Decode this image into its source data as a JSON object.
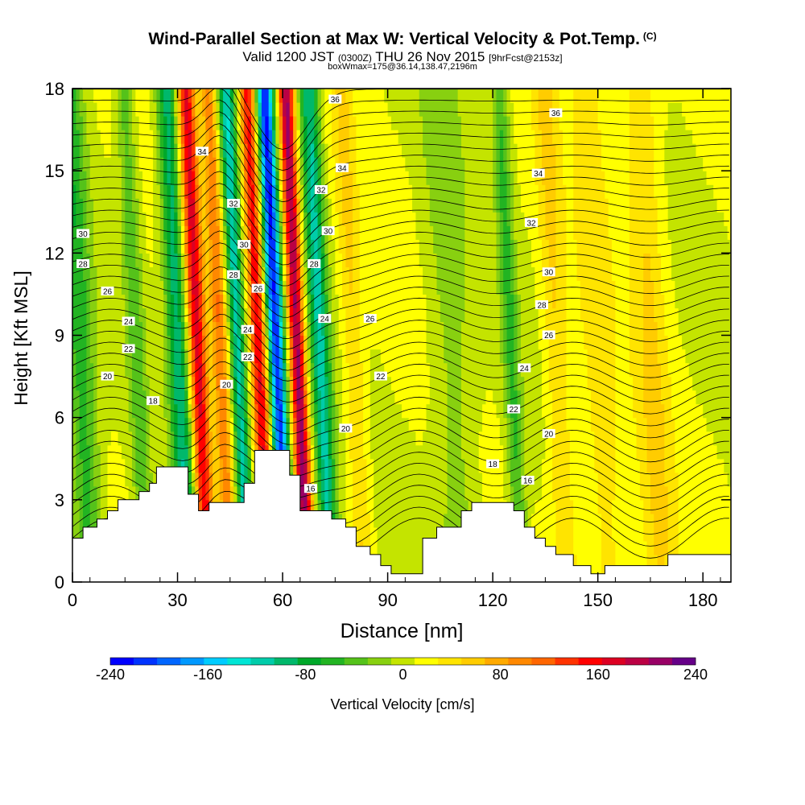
{
  "header": {
    "title": "Wind-Parallel Section at Max W: Vertical Velocity & Pot.Temp.",
    "copyright": "(C)",
    "valid_prefix": "Valid 1200 JST",
    "valid_utc": "(0300Z)",
    "valid_date": "THU 26 Nov 2015",
    "forecast": "[9hrFcst@2153z]",
    "box_info": "boxWmax=175@36.14,138.47,2196m"
  },
  "chart_data": {
    "type": "heatmap",
    "xlabel": "Distance [nm]",
    "ylabel": "Height [Kft MSL]",
    "xlim": [
      0,
      188
    ],
    "ylim": [
      0,
      18
    ],
    "x_ticks": [
      0,
      30,
      60,
      90,
      120,
      150,
      180
    ],
    "y_ticks": [
      0,
      3,
      6,
      9,
      12,
      15,
      18
    ],
    "colorbar": {
      "label": "Vertical Velocity [cm/s]",
      "ticks": [
        -240,
        -160,
        -80,
        0,
        80,
        160,
        240
      ],
      "range": [
        -240,
        240
      ],
      "colors": [
        "#0000ff",
        "#0033ff",
        "#0066ff",
        "#0099ff",
        "#00ccff",
        "#00e5d5",
        "#00ccaa",
        "#00b86b",
        "#00a82a",
        "#22b422",
        "#55c21a",
        "#88d010",
        "#c4e400",
        "#ffff00",
        "#ffe400",
        "#ffcc00",
        "#ffaa00",
        "#ff8800",
        "#ff6600",
        "#ff3300",
        "#ff0000",
        "#dd0022",
        "#bb0044",
        "#990066",
        "#660088"
      ]
    },
    "velocity_features": [
      {
        "x": 2,
        "w": 4,
        "v": -70
      },
      {
        "x": 18,
        "w": 2.5,
        "v": -50
      },
      {
        "x": 30,
        "w": 3,
        "v": -110
      },
      {
        "x": 35.5,
        "w": 2.6,
        "v": 160
      },
      {
        "x": 42,
        "w": 2.4,
        "v": 90
      },
      {
        "x": 47,
        "w": 2.4,
        "v": -130
      },
      {
        "x": 53,
        "w": 2.4,
        "v": 150
      },
      {
        "x": 58,
        "w": 2.4,
        "v": -230
      },
      {
        "x": 64,
        "w": 2.2,
        "v": 200
      },
      {
        "x": 70.5,
        "w": 2.8,
        "v": -120
      },
      {
        "x": 80,
        "w": 3,
        "v": 40
      },
      {
        "x": 108,
        "w": 6,
        "v": -30
      },
      {
        "x": 125,
        "w": 2.4,
        "v": -60
      },
      {
        "x": 138,
        "w": 3.5,
        "v": 40
      },
      {
        "x": 150,
        "w": 5,
        "v": 30
      },
      {
        "x": 165,
        "w": 5,
        "v": 40
      }
    ],
    "theta_contours": {
      "levels": [
        16,
        18,
        20,
        22,
        24,
        26,
        28,
        30,
        32,
        34,
        36
      ],
      "labels": [
        {
          "x": 68,
          "y": 3.4,
          "t": "16"
        },
        {
          "x": 130,
          "y": 3.7,
          "t": "16"
        },
        {
          "x": 23,
          "y": 6.6,
          "t": "18"
        },
        {
          "x": 120,
          "y": 4.3,
          "t": "18"
        },
        {
          "x": 10,
          "y": 7.5,
          "t": "20"
        },
        {
          "x": 44,
          "y": 7.2,
          "t": "20"
        },
        {
          "x": 78,
          "y": 5.6,
          "t": "20"
        },
        {
          "x": 136,
          "y": 5.4,
          "t": "20"
        },
        {
          "x": 16,
          "y": 8.5,
          "t": "22"
        },
        {
          "x": 50,
          "y": 8.2,
          "t": "22"
        },
        {
          "x": 88,
          "y": 7.5,
          "t": "22"
        },
        {
          "x": 126,
          "y": 6.3,
          "t": "22"
        },
        {
          "x": 16,
          "y": 9.5,
          "t": "24"
        },
        {
          "x": 50,
          "y": 9.2,
          "t": "24"
        },
        {
          "x": 72,
          "y": 9.6,
          "t": "24"
        },
        {
          "x": 129,
          "y": 7.8,
          "t": "24"
        },
        {
          "x": 10,
          "y": 10.6,
          "t": "26"
        },
        {
          "x": 53,
          "y": 10.7,
          "t": "26"
        },
        {
          "x": 85,
          "y": 9.6,
          "t": "26"
        },
        {
          "x": 136,
          "y": 9.0,
          "t": "26"
        },
        {
          "x": 3,
          "y": 11.6,
          "t": "28"
        },
        {
          "x": 46,
          "y": 11.2,
          "t": "28"
        },
        {
          "x": 69,
          "y": 11.6,
          "t": "28"
        },
        {
          "x": 134,
          "y": 10.1,
          "t": "28"
        },
        {
          "x": 3,
          "y": 12.7,
          "t": "30"
        },
        {
          "x": 49,
          "y": 12.3,
          "t": "30"
        },
        {
          "x": 73,
          "y": 12.8,
          "t": "30"
        },
        {
          "x": 136,
          "y": 11.3,
          "t": "30"
        },
        {
          "x": 46,
          "y": 13.8,
          "t": "32"
        },
        {
          "x": 71,
          "y": 14.3,
          "t": "32"
        },
        {
          "x": 131,
          "y": 13.1,
          "t": "32"
        },
        {
          "x": 37,
          "y": 15.7,
          "t": "34"
        },
        {
          "x": 77,
          "y": 15.1,
          "t": "34"
        },
        {
          "x": 133,
          "y": 14.9,
          "t": "34"
        },
        {
          "x": 75,
          "y": 17.6,
          "t": "36"
        },
        {
          "x": 138,
          "y": 17.1,
          "t": "36"
        }
      ]
    },
    "terrain": [
      [
        0,
        1.6
      ],
      [
        3,
        1.6
      ],
      [
        3,
        2.0
      ],
      [
        7,
        2.0
      ],
      [
        7,
        2.3
      ],
      [
        10,
        2.3
      ],
      [
        10,
        2.6
      ],
      [
        13,
        2.6
      ],
      [
        13,
        3.0
      ],
      [
        19,
        3.0
      ],
      [
        19,
        3.3
      ],
      [
        22,
        3.3
      ],
      [
        22,
        3.6
      ],
      [
        24,
        3.6
      ],
      [
        24,
        4.2
      ],
      [
        33,
        4.2
      ],
      [
        33,
        3.2
      ],
      [
        36,
        3.2
      ],
      [
        36,
        2.6
      ],
      [
        39,
        2.6
      ],
      [
        39,
        2.9
      ],
      [
        49,
        2.9
      ],
      [
        49,
        3.6
      ],
      [
        52,
        3.6
      ],
      [
        52,
        4.8
      ],
      [
        62,
        4.8
      ],
      [
        62,
        3.9
      ],
      [
        65,
        3.9
      ],
      [
        65,
        2.6
      ],
      [
        74,
        2.6
      ],
      [
        74,
        2.3
      ],
      [
        78,
        2.3
      ],
      [
        78,
        2.0
      ],
      [
        81,
        2.0
      ],
      [
        81,
        1.3
      ],
      [
        85,
        1.3
      ],
      [
        85,
        1.0
      ],
      [
        88,
        1.0
      ],
      [
        88,
        0.6
      ],
      [
        91,
        0.6
      ],
      [
        91,
        0.3
      ],
      [
        100,
        0.3
      ],
      [
        100,
        1.6
      ],
      [
        104,
        1.6
      ],
      [
        104,
        2.0
      ],
      [
        111,
        2.0
      ],
      [
        111,
        2.6
      ],
      [
        114,
        2.6
      ],
      [
        114,
        2.9
      ],
      [
        126,
        2.9
      ],
      [
        126,
        2.6
      ],
      [
        129,
        2.6
      ],
      [
        129,
        2.0
      ],
      [
        132,
        2.0
      ],
      [
        132,
        1.6
      ],
      [
        135,
        1.6
      ],
      [
        135,
        1.3
      ],
      [
        138,
        1.3
      ],
      [
        138,
        1.0
      ],
      [
        143,
        1.0
      ],
      [
        143,
        0.6
      ],
      [
        148,
        0.6
      ],
      [
        148,
        0.3
      ],
      [
        152,
        0.3
      ],
      [
        152,
        0.6
      ],
      [
        170,
        0.6
      ],
      [
        170,
        1.0
      ],
      [
        188,
        1.0
      ]
    ]
  }
}
